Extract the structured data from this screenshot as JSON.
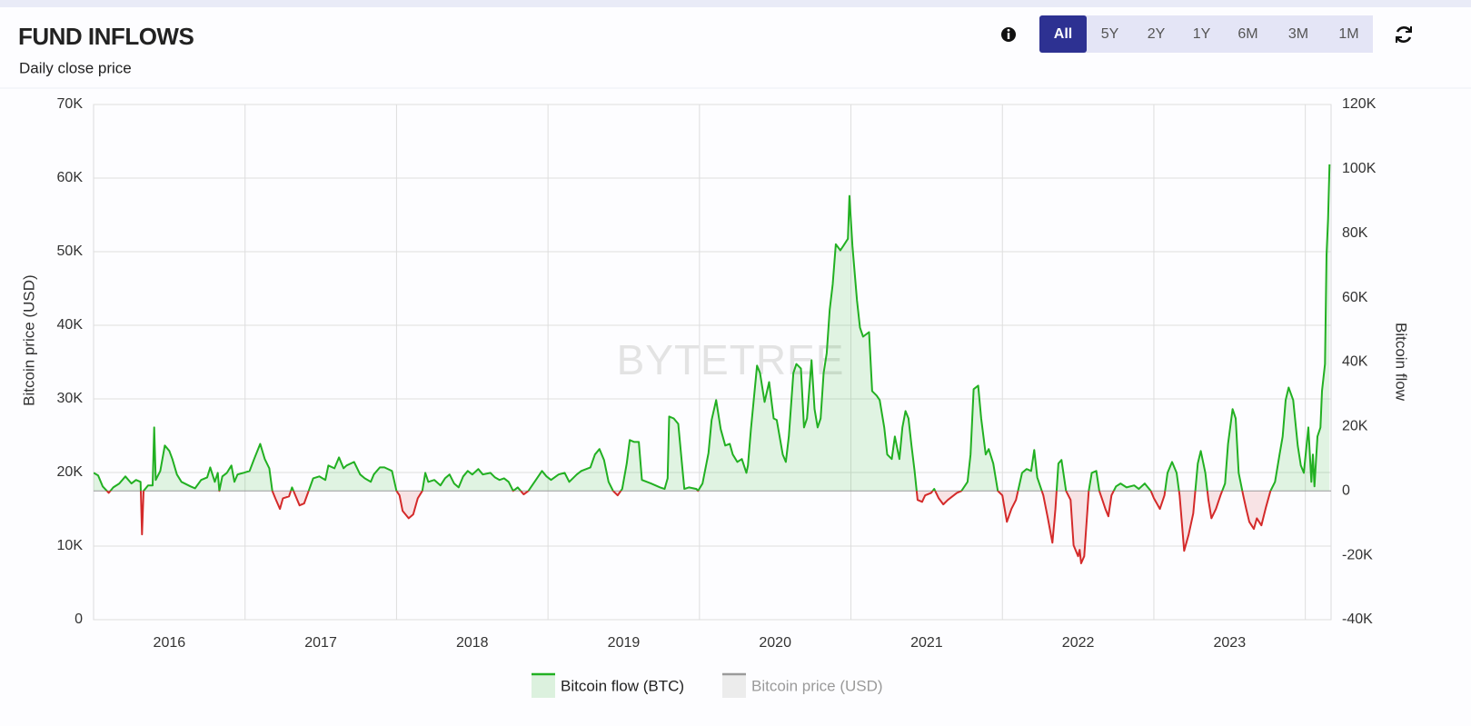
{
  "header": {
    "title": "FUND INFLOWS",
    "subtitle": "Daily close price"
  },
  "range_buttons": [
    "All",
    "5Y",
    "2Y",
    "1Y",
    "6M",
    "3M",
    "1M"
  ],
  "selected_button": 0,
  "chart_data": {
    "type": "line",
    "watermark": "BYTETREE",
    "y_label": "Bitcoin price (USD)",
    "y2_label": "Bitcoin flow",
    "x": [
      2016.0,
      2016.03,
      2016.06,
      2016.1,
      2016.13,
      2016.17,
      2016.21,
      2016.25,
      2016.28,
      2016.31,
      2016.32,
      2016.33,
      2016.36,
      2016.39,
      2016.4,
      2016.41,
      2016.44,
      2016.47,
      2016.5,
      2016.52,
      2016.55,
      2016.58,
      2016.64,
      2016.67,
      2016.71,
      2016.75,
      2016.77,
      2016.8,
      2016.82,
      2016.83,
      2016.85,
      2016.88,
      2016.91,
      2016.93,
      2016.95,
      2016.99,
      2017.03,
      2017.06,
      2017.1,
      2017.13,
      2017.16,
      2017.18,
      2017.2,
      2017.23,
      2017.25,
      2017.29,
      2017.31,
      2017.34,
      2017.36,
      2017.39,
      2017.42,
      2017.45,
      2017.49,
      2017.53,
      2017.55,
      2017.59,
      2017.62,
      2017.65,
      2017.67,
      2017.72,
      2017.76,
      2017.79,
      2017.83,
      2017.85,
      2017.89,
      2017.92,
      2017.97,
      2018.0,
      2018.02,
      2018.04,
      2018.08,
      2018.11,
      2018.14,
      2018.17,
      2018.19,
      2018.21,
      2018.25,
      2018.29,
      2018.32,
      2018.35,
      2018.38,
      2018.41,
      2018.44,
      2018.47,
      2018.5,
      2018.54,
      2018.57,
      2018.62,
      2018.65,
      2018.68,
      2018.71,
      2018.74,
      2018.77,
      2018.8,
      2018.84,
      2018.87,
      2018.92,
      2018.96,
      2018.99,
      2019.02,
      2019.07,
      2019.11,
      2019.14,
      2019.19,
      2019.22,
      2019.28,
      2019.31,
      2019.34,
      2019.37,
      2019.4,
      2019.43,
      2019.46,
      2019.49,
      2019.52,
      2019.54,
      2019.57,
      2019.6,
      2019.62,
      2019.68,
      2019.74,
      2019.77,
      2019.79,
      2019.8,
      2019.83,
      2019.86,
      2019.89,
      2019.9,
      2019.93,
      2019.98,
      2019.99,
      2020.02,
      2020.06,
      2020.08,
      2020.11,
      2020.14,
      2020.17,
      2020.2,
      2020.22,
      2020.25,
      2020.28,
      2020.31,
      2020.32,
      2020.34,
      2020.38,
      2020.4,
      2020.43,
      2020.46,
      2020.49,
      2020.51,
      2020.55,
      2020.57,
      2020.59,
      2020.62,
      2020.64,
      2020.67,
      2020.69,
      2020.71,
      2020.74,
      2020.76,
      2020.78,
      2020.8,
      2020.82,
      2020.84,
      2020.86,
      2020.88,
      2020.9,
      2020.93,
      2020.95,
      2020.98,
      2020.99,
      2021.01,
      2021.04,
      2021.06,
      2021.08,
      2021.12,
      2021.14,
      2021.17,
      2021.19,
      2021.22,
      2021.24,
      2021.27,
      2021.29,
      2021.32,
      2021.34,
      2021.36,
      2021.38,
      2021.4,
      2021.42,
      2021.44,
      2021.47,
      2021.49,
      2021.53,
      2021.55,
      2021.58,
      2021.61,
      2021.64,
      2021.67,
      2021.7,
      2021.73,
      2021.77,
      2021.79,
      2021.81,
      2021.84,
      2021.86,
      2021.89,
      2021.91,
      2021.94,
      2021.97,
      2022.0,
      2022.03,
      2022.06,
      2022.09,
      2022.13,
      2022.16,
      2022.19,
      2022.21,
      2022.23,
      2022.27,
      2022.3,
      2022.33,
      2022.35,
      2022.37,
      2022.39,
      2022.42,
      2022.45,
      2022.47,
      2022.5,
      2022.51,
      2022.52,
      2022.54,
      2022.57,
      2022.59,
      2022.62,
      2022.64,
      2022.66,
      2022.68,
      2022.7,
      2022.72,
      2022.75,
      2022.78,
      2022.82,
      2022.87,
      2022.9,
      2022.94,
      2022.98,
      2023.0,
      2023.04,
      2023.07,
      2023.09,
      2023.12,
      2023.15,
      2023.17,
      2023.19,
      2023.2,
      2023.23,
      2023.26,
      2023.29,
      2023.31,
      2023.34,
      2023.36,
      2023.38,
      2023.41,
      2023.44,
      2023.47,
      2023.49,
      2023.52,
      2023.54,
      2023.56,
      2023.59,
      2023.61,
      2023.63,
      2023.66,
      2023.68,
      2023.71,
      2023.74,
      2023.77,
      2023.8,
      2023.83,
      2023.85,
      2023.87,
      2023.89,
      2023.92,
      2023.95,
      2023.97,
      2023.99,
      2024.02,
      2024.04,
      2024.05,
      2024.06,
      2024.08,
      2024.1,
      2024.11,
      2024.13,
      2024.14,
      2024.15,
      2024.16
    ],
    "series": [
      {
        "name": "Bitcoin flow (BTC)",
        "color": "#22b022",
        "negative_color": "#d42a2a",
        "axis": "y2",
        "values": [
          5600,
          4800,
          1400,
          -600,
          1100,
          2300,
          4500,
          2300,
          3400,
          2800,
          -13500,
          0,
          1700,
          1700,
          19700,
          3400,
          6200,
          14100,
          12400,
          9900,
          5100,
          2800,
          1400,
          800,
          3400,
          4200,
          7300,
          2800,
          5600,
          0,
          4500,
          5600,
          7900,
          2800,
          5100,
          5600,
          6200,
          9900,
          14600,
          9900,
          7000,
          0,
          -2300,
          -5600,
          -2300,
          -1700,
          1100,
          -2300,
          -4500,
          -3900,
          0,
          3900,
          4500,
          3400,
          7900,
          7000,
          10400,
          7000,
          7900,
          9000,
          5100,
          3900,
          2800,
          5100,
          7300,
          7300,
          6200,
          0,
          -1400,
          -6200,
          -8500,
          -7300,
          -2300,
          0,
          5600,
          2800,
          3400,
          1700,
          3900,
          5100,
          2300,
          1100,
          4500,
          6200,
          5100,
          6800,
          5100,
          5600,
          4200,
          3400,
          3900,
          2800,
          0,
          1100,
          -1100,
          0,
          3400,
          6200,
          4500,
          3400,
          5100,
          5600,
          2800,
          5100,
          6200,
          7300,
          11300,
          13000,
          9600,
          2800,
          0,
          -1400,
          600,
          8500,
          15800,
          15200,
          15200,
          3400,
          2300,
          1100,
          600,
          3900,
          23100,
          22500,
          20800,
          5600,
          600,
          1100,
          600,
          0,
          2300,
          11800,
          22000,
          28200,
          19200,
          14100,
          14600,
          11300,
          9000,
          9900,
          5600,
          7900,
          19200,
          38900,
          36600,
          27600,
          33800,
          22500,
          22000,
          11300,
          9000,
          16900,
          36600,
          39400,
          38000,
          19700,
          22500,
          40600,
          25400,
          19700,
          22500,
          36600,
          42800,
          56300,
          64200,
          76600,
          74700,
          76100,
          78300,
          91600,
          76100,
          59200,
          50700,
          47900,
          49300,
          31000,
          29600,
          28200,
          19700,
          11300,
          9900,
          16900,
          9900,
          19700,
          24800,
          22500,
          14100,
          6200,
          -2800,
          -3400,
          -1400,
          -600,
          600,
          -2300,
          -4200,
          -2800,
          -1700,
          -600,
          0,
          2800,
          11300,
          31600,
          32700,
          22500,
          11300,
          13000,
          8500,
          0,
          -1400,
          -9600,
          -5600,
          -2800,
          5600,
          6800,
          6200,
          12700,
          4200,
          -1400,
          -8500,
          -16100,
          -5600,
          8500,
          9600,
          0,
          -2800,
          -16900,
          -20300,
          -18300,
          -22500,
          -20300,
          0,
          5600,
          6200,
          0,
          -2800,
          -5600,
          -7900,
          -1400,
          1400,
          2300,
          1100,
          1700,
          600,
          2300,
          0,
          -2300,
          -5600,
          -1400,
          5600,
          9000,
          5600,
          -1400,
          -12700,
          -18600,
          -13500,
          -7000,
          8500,
          12400,
          5600,
          -2800,
          -8500,
          -5600,
          -1400,
          2300,
          14600,
          25400,
          22500,
          5600,
          -1400,
          -5600,
          -9600,
          -11800,
          -8500,
          -10700,
          -5100,
          0,
          2800,
          11300,
          16900,
          28200,
          32100,
          28200,
          14100,
          7900,
          5600,
          19700,
          2800,
          11300,
          1400,
          16900,
          19700,
          31000,
          39400,
          73200,
          84500,
          101400
        ]
      },
      {
        "name": "Bitcoin price (USD)",
        "color": "#999999",
        "hidden": true
      }
    ],
    "xlim": [
      2016,
      2024.17
    ],
    "xticks": [
      {
        "value": 2016.5,
        "label": "2016"
      },
      {
        "value": 2017.5,
        "label": "2017"
      },
      {
        "value": 2018.5,
        "label": "2018"
      },
      {
        "value": 2019.5,
        "label": "2019"
      },
      {
        "value": 2020.5,
        "label": "2020"
      },
      {
        "value": 2021.5,
        "label": "2021"
      },
      {
        "value": 2022.5,
        "label": "2022"
      },
      {
        "value": 2023.5,
        "label": "2023"
      }
    ],
    "xgrid": [
      2017,
      2018,
      2019,
      2020,
      2021,
      2022,
      2023,
      2024
    ],
    "ylim": [
      0,
      70000
    ],
    "yticks": [
      0,
      {
        "value": 10000,
        "label": "10K"
      },
      {
        "value": 20000,
        "label": "20K"
      },
      {
        "value": 30000,
        "label": "30K"
      },
      {
        "value": 40000,
        "label": "40K"
      },
      {
        "value": 50000,
        "label": "50K"
      },
      {
        "value": 60000,
        "label": "60K"
      },
      {
        "value": 70000,
        "label": "70K"
      }
    ],
    "y2lim": [
      -40000,
      120000
    ],
    "y2ticks": [
      {
        "value": -40000,
        "label": "-40K"
      },
      {
        "value": -20000,
        "label": "-20K"
      },
      0,
      {
        "value": 20000,
        "label": "20K"
      },
      {
        "value": 40000,
        "label": "40K"
      },
      {
        "value": 60000,
        "label": "60K"
      },
      {
        "value": 80000,
        "label": "80K"
      },
      {
        "value": 100000,
        "label": "100K"
      },
      {
        "value": 120000,
        "label": "120K"
      }
    ],
    "grid": true
  }
}
